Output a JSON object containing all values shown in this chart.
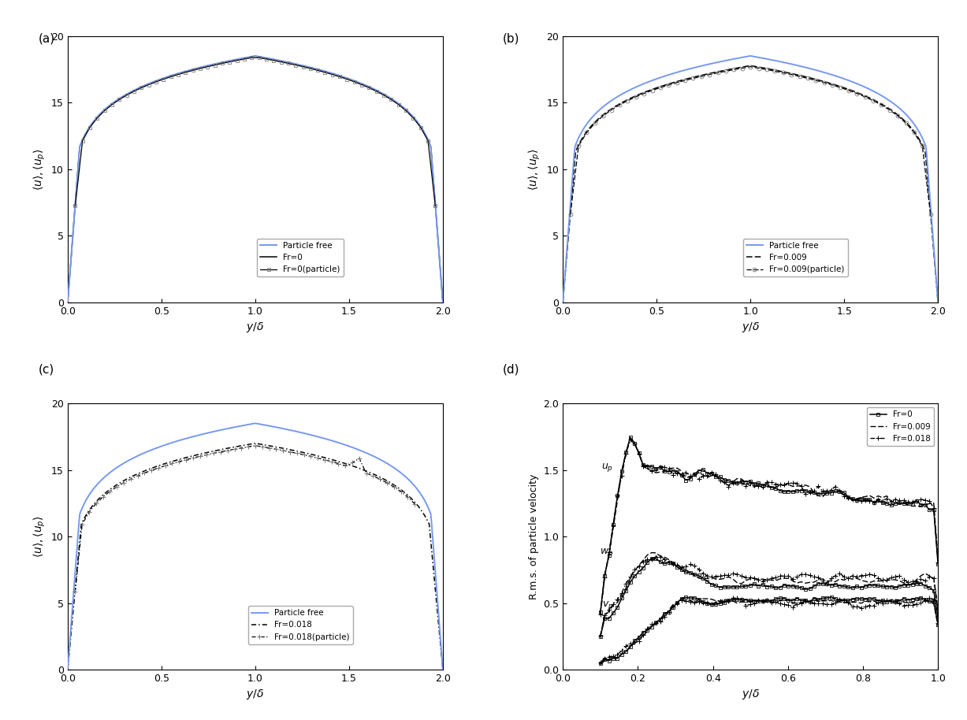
{
  "fig_width": 12.27,
  "fig_height": 9.14,
  "bg_color": "#ffffff",
  "panels": [
    "(a)",
    "(b)",
    "(c)",
    "(d)"
  ],
  "ylim_abc": [
    0,
    20
  ],
  "xlim_abc": [
    0,
    2
  ],
  "ylim_d": [
    0,
    2
  ],
  "xlim_d": [
    0,
    1
  ],
  "yticks_abc": [
    0,
    5,
    10,
    15,
    20
  ],
  "xticks_abc": [
    0,
    0.5,
    1.0,
    1.5,
    2.0
  ],
  "yticks_d": [
    0,
    0.5,
    1.0,
    1.5,
    2.0
  ],
  "xticks_d": [
    0,
    0.2,
    0.4,
    0.6,
    0.8,
    1.0
  ],
  "blue_color": "#7799ee",
  "black_color": "#000000"
}
